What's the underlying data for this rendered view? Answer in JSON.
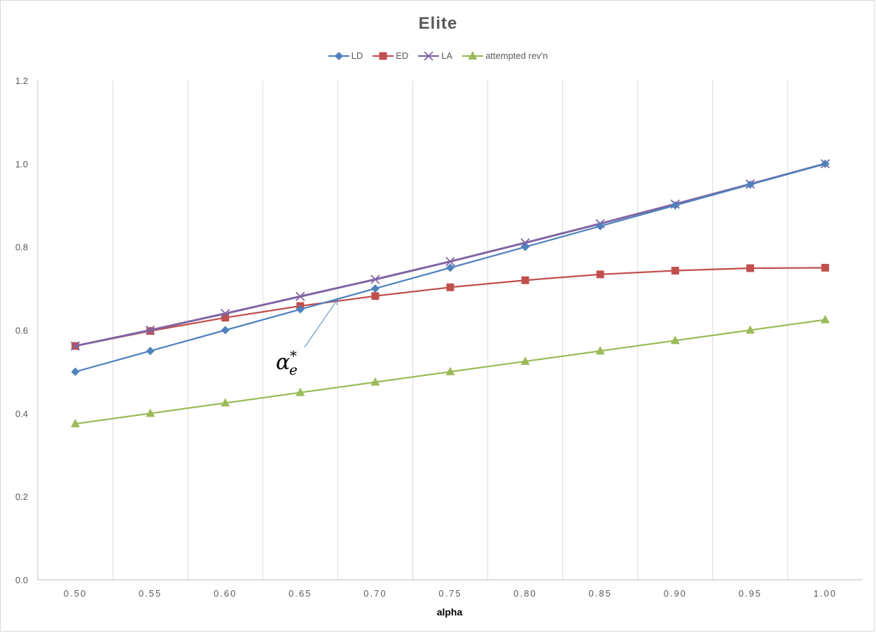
{
  "chart_data": {
    "type": "line",
    "title": "Elite",
    "xlabel": "alpha",
    "ylabel": "",
    "x": [
      0.5,
      0.55,
      0.6,
      0.65,
      0.7,
      0.75,
      0.8,
      0.85,
      0.9,
      0.95,
      1.0
    ],
    "x_tick_labels": [
      "0.50",
      "0.55",
      "0.60",
      "0.65",
      "0.70",
      "0.75",
      "0.80",
      "0.85",
      "0.90",
      "0.95",
      "1.00"
    ],
    "y_tick_labels": [
      "0.0",
      "0.2",
      "0.4",
      "0.6",
      "0.8",
      "1.0",
      "1.2"
    ],
    "ylim": [
      0,
      1.2
    ],
    "grid": "vertical",
    "legend_position": "top",
    "series": [
      {
        "name": "LD",
        "color": "#4f81bd",
        "marker": "diamond",
        "values": [
          0.5,
          0.55,
          0.6,
          0.65,
          0.7,
          0.75,
          0.8,
          0.85,
          0.9,
          0.95,
          1.0
        ]
      },
      {
        "name": "ED",
        "color": "#c0504d",
        "marker": "square",
        "values": [
          0.562,
          0.598,
          0.63,
          0.658,
          0.682,
          0.703,
          0.72,
          0.734,
          0.743,
          0.749,
          0.75
        ]
      },
      {
        "name": "LA",
        "color": "#8064a2",
        "marker": "x",
        "values": [
          0.562,
          0.6,
          0.64,
          0.681,
          0.722,
          0.765,
          0.81,
          0.856,
          0.903,
          0.951,
          1.0
        ]
      },
      {
        "name": "attempted rev'n",
        "color": "#9bbb59",
        "marker": "triangle",
        "values": [
          0.375,
          0.4,
          0.425,
          0.45,
          0.475,
          0.5,
          0.525,
          0.55,
          0.575,
          0.6,
          0.625
        ]
      }
    ],
    "annotation": {
      "base": "α",
      "subscript": "e",
      "superscript": "*",
      "points_to_x": 0.675,
      "points_to_y": 0.675
    }
  }
}
